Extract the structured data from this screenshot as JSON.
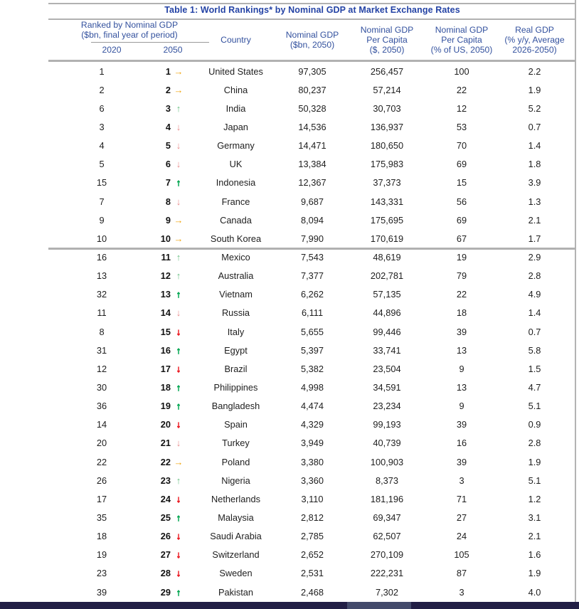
{
  "title": "Table 1: World Rankings* by Nominal GDP at Market Exchange Rates",
  "columns": {
    "group_line1": "Ranked by Nominal GDP",
    "group_line2": "($bn, final year of period)",
    "year_left": "2020",
    "year_right": "2050",
    "country": "Country",
    "gdp": [
      "Nominal GDP",
      "($bn, 2050)"
    ],
    "gdp_pc": [
      "Nominal GDP",
      "Per Capita",
      "($, 2050)"
    ],
    "gdp_pc_us": [
      "Nominal GDP",
      "Per Capita",
      "(% of US, 2050)"
    ],
    "real_gdp": [
      "Real GDP",
      "(% y/y, Average",
      "2026-2050)"
    ]
  },
  "icons": {
    "up": "↑",
    "down": "↓",
    "same": "→"
  },
  "colors": {
    "title_blue": "#2443a5",
    "header_blue": "#33519e",
    "up_green": "#00a651",
    "up_green_light": "#6abf84",
    "down_red": "#ec1c24",
    "down_red_light": "#e88a8a",
    "same_yellow": "#f0a30a",
    "rule_gray": "#b1b1b1",
    "bottom_bar_navy": "#211e45",
    "scroll_thumb_slate": "#434a6b"
  },
  "rows": [
    {
      "rank_2020": "1",
      "rank_2050": "1",
      "change": "same",
      "big": false,
      "country": "United States",
      "gdp": "97,305",
      "gdp_pc": "256,457",
      "pct_us": "100",
      "real_gdp": "2.2"
    },
    {
      "rank_2020": "2",
      "rank_2050": "2",
      "change": "same",
      "big": false,
      "country": "China",
      "gdp": "80,237",
      "gdp_pc": "57,214",
      "pct_us": "22",
      "real_gdp": "1.9"
    },
    {
      "rank_2020": "6",
      "rank_2050": "3",
      "change": "up",
      "big": false,
      "country": "India",
      "gdp": "50,328",
      "gdp_pc": "30,703",
      "pct_us": "12",
      "real_gdp": "5.2"
    },
    {
      "rank_2020": "3",
      "rank_2050": "4",
      "change": "down",
      "big": false,
      "country": "Japan",
      "gdp": "14,536",
      "gdp_pc": "136,937",
      "pct_us": "53",
      "real_gdp": "0.7"
    },
    {
      "rank_2020": "4",
      "rank_2050": "5",
      "change": "down",
      "big": false,
      "country": "Germany",
      "gdp": "14,471",
      "gdp_pc": "180,650",
      "pct_us": "70",
      "real_gdp": "1.4"
    },
    {
      "rank_2020": "5",
      "rank_2050": "6",
      "change": "down",
      "big": false,
      "country": "UK",
      "gdp": "13,384",
      "gdp_pc": "175,983",
      "pct_us": "69",
      "real_gdp": "1.8"
    },
    {
      "rank_2020": "15",
      "rank_2050": "7",
      "change": "up",
      "big": true,
      "country": "Indonesia",
      "gdp": "12,367",
      "gdp_pc": "37,373",
      "pct_us": "15",
      "real_gdp": "3.9"
    },
    {
      "rank_2020": "7",
      "rank_2050": "8",
      "change": "down",
      "big": false,
      "country": "France",
      "gdp": "9,687",
      "gdp_pc": "143,331",
      "pct_us": "56",
      "real_gdp": "1.3"
    },
    {
      "rank_2020": "9",
      "rank_2050": "9",
      "change": "same",
      "big": false,
      "country": "Canada",
      "gdp": "8,094",
      "gdp_pc": "175,695",
      "pct_us": "69",
      "real_gdp": "2.1"
    },
    {
      "rank_2020": "10",
      "rank_2050": "10",
      "change": "same",
      "big": false,
      "country": "South Korea",
      "gdp": "7,990",
      "gdp_pc": "170,619",
      "pct_us": "67",
      "real_gdp": "1.7"
    },
    {
      "rank_2020": "16",
      "rank_2050": "11",
      "change": "up",
      "big": false,
      "country": "Mexico",
      "gdp": "7,543",
      "gdp_pc": "48,619",
      "pct_us": "19",
      "real_gdp": "2.9"
    },
    {
      "rank_2020": "13",
      "rank_2050": "12",
      "change": "up",
      "big": false,
      "country": "Australia",
      "gdp": "7,377",
      "gdp_pc": "202,781",
      "pct_us": "79",
      "real_gdp": "2.8"
    },
    {
      "rank_2020": "32",
      "rank_2050": "13",
      "change": "up",
      "big": true,
      "country": "Vietnam",
      "gdp": "6,262",
      "gdp_pc": "57,135",
      "pct_us": "22",
      "real_gdp": "4.9"
    },
    {
      "rank_2020": "11",
      "rank_2050": "14",
      "change": "down",
      "big": false,
      "country": "Russia",
      "gdp": "6,111",
      "gdp_pc": "44,896",
      "pct_us": "18",
      "real_gdp": "1.4"
    },
    {
      "rank_2020": "8",
      "rank_2050": "15",
      "change": "down",
      "big": true,
      "country": "Italy",
      "gdp": "5,655",
      "gdp_pc": "99,446",
      "pct_us": "39",
      "real_gdp": "0.7"
    },
    {
      "rank_2020": "31",
      "rank_2050": "16",
      "change": "up",
      "big": true,
      "country": "Egypt",
      "gdp": "5,397",
      "gdp_pc": "33,741",
      "pct_us": "13",
      "real_gdp": "5.8"
    },
    {
      "rank_2020": "12",
      "rank_2050": "17",
      "change": "down",
      "big": true,
      "country": "Brazil",
      "gdp": "5,382",
      "gdp_pc": "23,504",
      "pct_us": "9",
      "real_gdp": "1.5"
    },
    {
      "rank_2020": "30",
      "rank_2050": "18",
      "change": "up",
      "big": true,
      "country": "Philippines",
      "gdp": "4,998",
      "gdp_pc": "34,591",
      "pct_us": "13",
      "real_gdp": "4.7"
    },
    {
      "rank_2020": "36",
      "rank_2050": "19",
      "change": "up",
      "big": true,
      "country": "Bangladesh",
      "gdp": "4,474",
      "gdp_pc": "23,234",
      "pct_us": "9",
      "real_gdp": "5.1"
    },
    {
      "rank_2020": "14",
      "rank_2050": "20",
      "change": "down",
      "big": true,
      "country": "Spain",
      "gdp": "4,329",
      "gdp_pc": "99,193",
      "pct_us": "39",
      "real_gdp": "0.9"
    },
    {
      "rank_2020": "20",
      "rank_2050": "21",
      "change": "down",
      "big": false,
      "country": "Turkey",
      "gdp": "3,949",
      "gdp_pc": "40,739",
      "pct_us": "16",
      "real_gdp": "2.8"
    },
    {
      "rank_2020": "22",
      "rank_2050": "22",
      "change": "same",
      "big": false,
      "country": "Poland",
      "gdp": "3,380",
      "gdp_pc": "100,903",
      "pct_us": "39",
      "real_gdp": "1.9"
    },
    {
      "rank_2020": "26",
      "rank_2050": "23",
      "change": "up",
      "big": false,
      "country": "Nigeria",
      "gdp": "3,360",
      "gdp_pc": "8,373",
      "pct_us": "3",
      "real_gdp": "5.1"
    },
    {
      "rank_2020": "17",
      "rank_2050": "24",
      "change": "down",
      "big": true,
      "country": "Netherlands",
      "gdp": "3,110",
      "gdp_pc": "181,196",
      "pct_us": "71",
      "real_gdp": "1.2"
    },
    {
      "rank_2020": "35",
      "rank_2050": "25",
      "change": "up",
      "big": true,
      "country": "Malaysia",
      "gdp": "2,812",
      "gdp_pc": "69,347",
      "pct_us": "27",
      "real_gdp": "3.1"
    },
    {
      "rank_2020": "18",
      "rank_2050": "26",
      "change": "down",
      "big": true,
      "country": "Saudi Arabia",
      "gdp": "2,785",
      "gdp_pc": "62,507",
      "pct_us": "24",
      "real_gdp": "2.1"
    },
    {
      "rank_2020": "19",
      "rank_2050": "27",
      "change": "down",
      "big": true,
      "country": "Switzerland",
      "gdp": "2,652",
      "gdp_pc": "270,109",
      "pct_us": "105",
      "real_gdp": "1.6"
    },
    {
      "rank_2020": "23",
      "rank_2050": "28",
      "change": "down",
      "big": true,
      "country": "Sweden",
      "gdp": "2,531",
      "gdp_pc": "222,231",
      "pct_us": "87",
      "real_gdp": "1.9"
    },
    {
      "rank_2020": "39",
      "rank_2050": "29",
      "change": "up",
      "big": true,
      "country": "Pakistan",
      "gdp": "2,468",
      "gdp_pc": "7,302",
      "pct_us": "3",
      "real_gdp": "4.0"
    }
  ]
}
